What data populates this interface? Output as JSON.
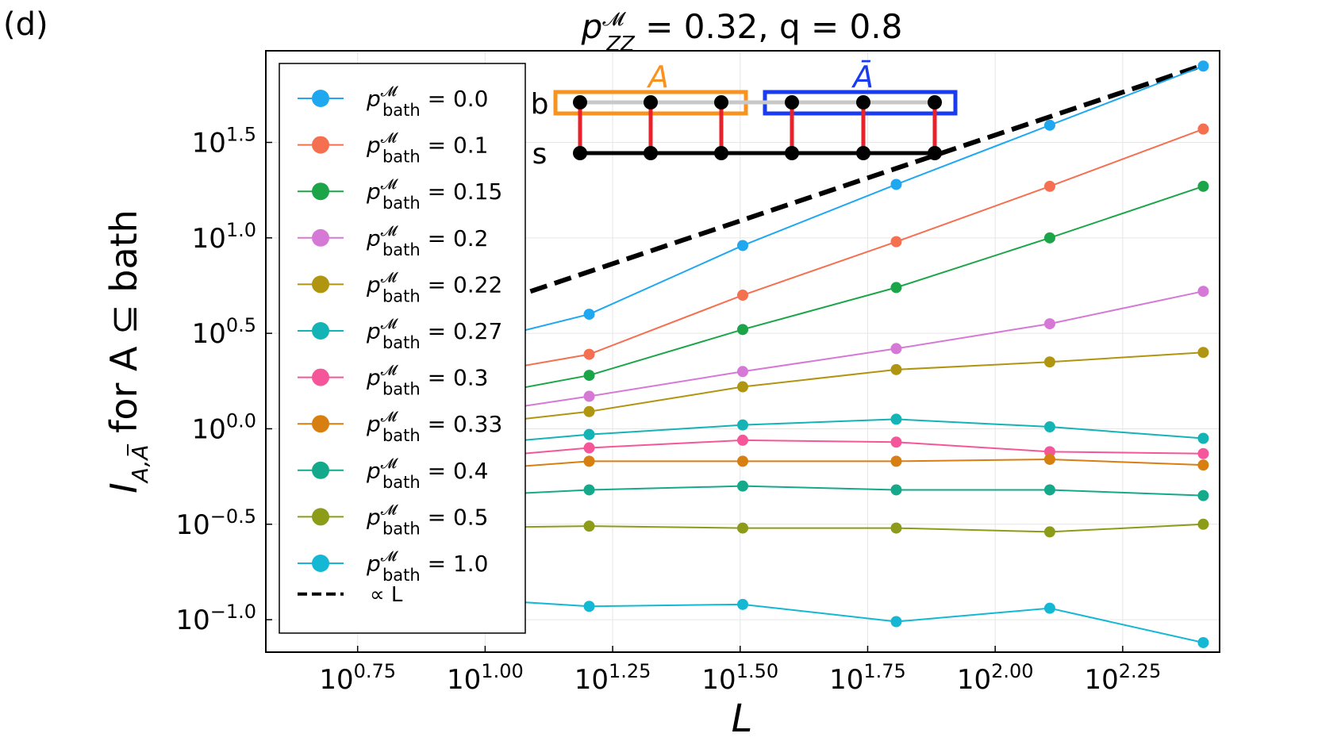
{
  "panel_label": "(d)",
  "chart_data": {
    "type": "line",
    "x_scale": "log10",
    "y_scale": "log10",
    "title": "p_ZZ^M = 0.32, q = 0.8",
    "title_parts": {
      "p": "p",
      "sup": "𝓜",
      "sub": "ZZ",
      "rest": " = 0.32, q = 0.8"
    },
    "xlabel": "L",
    "ylabel_parts": {
      "I": "I",
      "sub": "A,A̅",
      "rest": " for A ⊆ bath"
    },
    "xlim_log10": [
      0.57,
      2.44
    ],
    "ylim_log10": [
      -1.17,
      1.98
    ],
    "xticks_log10": [
      "0.75",
      "1.00",
      "1.25",
      "1.50",
      "1.75",
      "2.00",
      "2.25"
    ],
    "yticks_log10": [
      "1.5",
      "1.0",
      "0.5",
      "0.0",
      "−0.5",
      "−1.0"
    ],
    "tick_base": "10",
    "grid": true,
    "legend_position": "upper-left",
    "x_log10": [
      0.903,
      1.204,
      1.505,
      1.806,
      2.107,
      2.408
    ],
    "series": [
      {
        "name": "p_bath^M = 0.0",
        "label_value": "0.0",
        "color": "#1fa8f0",
        "values_log10": [
          0.4,
          0.6,
          0.96,
          1.28,
          1.59,
          1.9
        ]
      },
      {
        "name": "p_bath^M = 0.1",
        "label_value": "0.1",
        "color": "#f47050",
        "values_log10": [
          0.25,
          0.39,
          0.7,
          0.98,
          1.27,
          1.57
        ]
      },
      {
        "name": "p_bath^M = 0.15",
        "label_value": "0.15",
        "color": "#1ca548",
        "values_log10": [
          0.13,
          0.28,
          0.52,
          0.74,
          1.0,
          1.27
        ]
      },
      {
        "name": "p_bath^M = 0.2",
        "label_value": "0.2",
        "color": "#d678d6",
        "values_log10": [
          0.05,
          0.17,
          0.3,
          0.42,
          0.55,
          0.72
        ]
      },
      {
        "name": "p_bath^M = 0.22",
        "label_value": "0.22",
        "color": "#b09510",
        "values_log10": [
          0.0,
          0.09,
          0.22,
          0.31,
          0.35,
          0.4
        ]
      },
      {
        "name": "p_bath^M = 0.27",
        "label_value": "0.27",
        "color": "#14b3b5",
        "values_log10": [
          -0.1,
          -0.03,
          0.02,
          0.05,
          0.01,
          -0.05
        ]
      },
      {
        "name": "p_bath^M = 0.3",
        "label_value": "0.3",
        "color": "#f5569a",
        "values_log10": [
          -0.17,
          -0.1,
          -0.06,
          -0.07,
          -0.12,
          -0.13
        ]
      },
      {
        "name": "p_bath^M = 0.33",
        "label_value": "0.33",
        "color": "#d77f10",
        "values_log10": [
          -0.23,
          -0.17,
          -0.17,
          -0.17,
          -0.16,
          -0.19
        ]
      },
      {
        "name": "p_bath^M = 0.4",
        "label_value": "0.4",
        "color": "#15a98c",
        "values_log10": [
          -0.36,
          -0.32,
          -0.3,
          -0.32,
          -0.32,
          -0.35
        ]
      },
      {
        "name": "p_bath^M = 0.5",
        "label_value": "0.5",
        "color": "#8c9c18",
        "values_log10": [
          -0.52,
          -0.51,
          -0.52,
          -0.52,
          -0.54,
          -0.5
        ]
      },
      {
        "name": "p_bath^M = 1.0",
        "label_value": "1.0",
        "color": "#14b8d4",
        "values_log10": [
          -0.88,
          -0.93,
          -0.92,
          -1.01,
          -0.94,
          -1.12
        ]
      }
    ],
    "reference_line": {
      "name": "∝ L",
      "color": "#000000",
      "style": "dashed",
      "x_log10": [
        0.9,
        2.408
      ],
      "y_log10": [
        0.55,
        1.905
      ]
    },
    "legend_ref_label": "∝ L",
    "inset": {
      "row_top_label": "b",
      "row_bottom_label": "s",
      "region_a_label": "A",
      "region_abar_label": "Ā",
      "region_a_color": "#f7931e",
      "region_abar_color": "#1a3cf0",
      "rung_color": "#e8212a"
    }
  }
}
